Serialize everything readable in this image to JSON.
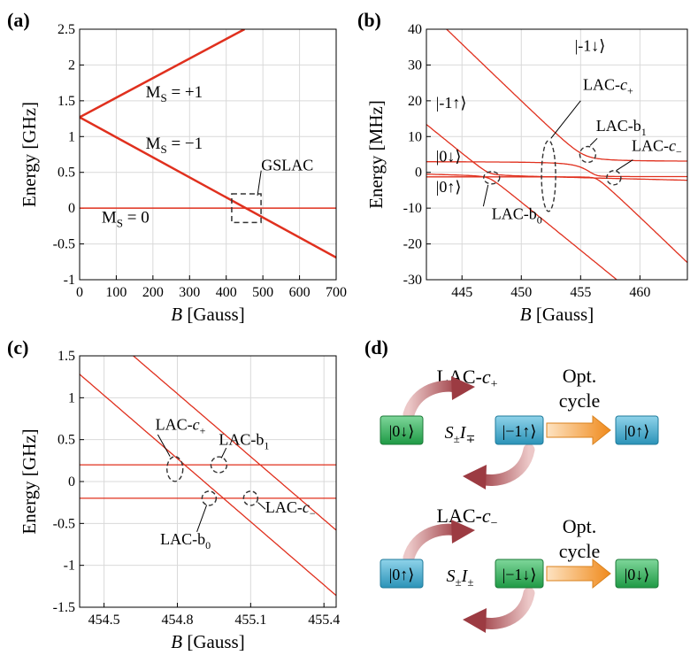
{
  "colors": {
    "curve": "#e0301e",
    "grid": "#d9d9d9",
    "arrow_red": "#b5525a",
    "box_green": "#36b35a",
    "box_blue": "#3fa8c9",
    "arrow_orange": "#f39a2e"
  },
  "chart_data": [
    {
      "panel": "(a)",
      "type": "line",
      "xlabel_italic": "B",
      "xlabel_rest": " [Gauss]",
      "ylabel": "Energy [GHz]",
      "xlim": [
        0,
        700
      ],
      "ylim": [
        -1,
        2.5
      ],
      "xticks": [
        0,
        100,
        200,
        300,
        400,
        500,
        600,
        700
      ],
      "yticks": [
        -1,
        -0.5,
        0,
        0.5,
        1,
        1.5,
        2,
        2.5
      ],
      "ytick_labels": [
        "-1",
        "-0.5",
        "0",
        "0.5",
        "1",
        "1.5",
        "2",
        "2.5"
      ],
      "series": [
        {
          "name": "MS=+1",
          "x": [
            0,
            450
          ],
          "y": [
            1.27,
            2.5
          ],
          "width": 2.5
        },
        {
          "name": "MS=-1",
          "x": [
            0,
            700
          ],
          "y": [
            1.27,
            -0.69
          ],
          "width": 2.5
        },
        {
          "name": "MS=0",
          "x": [
            0,
            700
          ],
          "y": [
            0,
            0
          ],
          "width": 1.5
        }
      ],
      "labels": [
        {
          "text": "M",
          "sub": "S",
          "rest": " = +1",
          "x": 180,
          "y": 1.55
        },
        {
          "text": "M",
          "sub": "S",
          "rest": " = −1",
          "x": 180,
          "y": 0.83
        },
        {
          "text": "M",
          "sub": "S",
          "rest": " = 0",
          "x": 60,
          "y": -0.2
        }
      ],
      "gslac": {
        "label": "GSLAC",
        "box_x": [
          415,
          495
        ],
        "box_y": [
          -0.2,
          0.2
        ],
        "label_x": 505,
        "label_y": 0.5
      }
    },
    {
      "panel": "(b)",
      "type": "line",
      "xlabel_italic": "B",
      "xlabel_rest": " [Gauss]",
      "ylabel": "Energy [MHz]",
      "xlim": [
        442,
        464
      ],
      "ylim": [
        -30,
        40
      ],
      "xticks": [
        445,
        450,
        455,
        460
      ],
      "yticks": [
        -30,
        -20,
        -10,
        0,
        10,
        20,
        30,
        40
      ],
      "ytick_labels": [
        "-30",
        "-20",
        "-10",
        "0",
        "10",
        "20",
        "30",
        "40"
      ],
      "state_labels": [
        {
          "text": "|-1↓⟩",
          "x": 454.5,
          "y": 34
        },
        {
          "text": "|-1↑⟩",
          "x": 442.8,
          "y": 18
        },
        {
          "text": "|0↓⟩",
          "x": 442.8,
          "y": 3
        },
        {
          "text": "|0↑⟩",
          "x": 442.8,
          "y": -5.5
        }
      ],
      "lac_labels": [
        {
          "text": "LAC-",
          "ital": "c",
          "sub": "+",
          "x": 455.2,
          "y": 23
        },
        {
          "text": "LAC-b",
          "ital": "",
          "sub": "1",
          "x": 456.3,
          "y": 11.5
        },
        {
          "text": "LAC-",
          "ital": "c",
          "sub": "−",
          "x": 459.3,
          "y": 6
        },
        {
          "text": "LAC-b",
          "ital": "",
          "sub": "0",
          "x": 447.5,
          "y": -13
        }
      ]
    },
    {
      "panel": "(c)",
      "type": "line",
      "xlabel_italic": "B",
      "xlabel_rest": " [Gauss]",
      "ylabel": "Energy [GHz]",
      "xlim": [
        454.4,
        455.45
      ],
      "ylim": [
        -1.5,
        1.5
      ],
      "xticks": [
        454.5,
        454.8,
        455.1,
        455.4
      ],
      "yticks": [
        -1.5,
        -1,
        -0.5,
        0,
        0.5,
        1,
        1.5
      ],
      "ytick_labels": [
        "-1.5",
        "-1",
        "-0.5",
        "0",
        "0.5",
        "1",
        "1.5"
      ],
      "series": [
        {
          "name": "line1",
          "x": [
            454.4,
            455.45
          ],
          "y": [
            1.28,
            -1.36
          ]
        },
        {
          "name": "line2",
          "x": [
            454.4,
            455.45
          ],
          "y": [
            2.05,
            -0.58
          ]
        },
        {
          "name": "level+0.2",
          "x": [
            454.4,
            455.45
          ],
          "y": [
            0.2,
            0.2
          ]
        },
        {
          "name": "level-0.2",
          "x": [
            454.4,
            455.45
          ],
          "y": [
            -0.2,
            -0.2
          ]
        }
      ],
      "lac_labels": [
        {
          "text": "LAC-",
          "ital": "c",
          "sub": "+",
          "x": 454.71,
          "y": 0.62
        },
        {
          "text": "LAC-b",
          "ital": "",
          "sub": "1",
          "x": 454.97,
          "y": 0.44
        },
        {
          "text": "LAC-",
          "ital": "c",
          "sub": "−",
          "x": 455.16,
          "y": -0.37
        },
        {
          "text": "LAC-b",
          "ital": "",
          "sub": "0",
          "x": 454.73,
          "y": -0.75
        }
      ]
    }
  ],
  "panel_d": {
    "panel": "(d)",
    "top": {
      "lac_main": "LAC-",
      "lac_ital": "c",
      "lac_sub": "+",
      "left_box": "|0↓⟩",
      "right_box": "|−1↑⟩",
      "operator": "S",
      "op_sub": "±",
      "op2": "I",
      "op2_sub": "∓",
      "opt_line1": "Opt.",
      "opt_line2": "cycle",
      "result_box": "|0↑⟩"
    },
    "bottom": {
      "lac_main": "LAC-",
      "lac_ital": "c",
      "lac_sub": "−",
      "left_box": "|0↑⟩",
      "right_box": "|−1↓⟩",
      "operator": "S",
      "op_sub": "±",
      "op2": "I",
      "op2_sub": "±",
      "opt_line1": "Opt.",
      "opt_line2": "cycle",
      "result_box": "|0↓⟩"
    }
  }
}
